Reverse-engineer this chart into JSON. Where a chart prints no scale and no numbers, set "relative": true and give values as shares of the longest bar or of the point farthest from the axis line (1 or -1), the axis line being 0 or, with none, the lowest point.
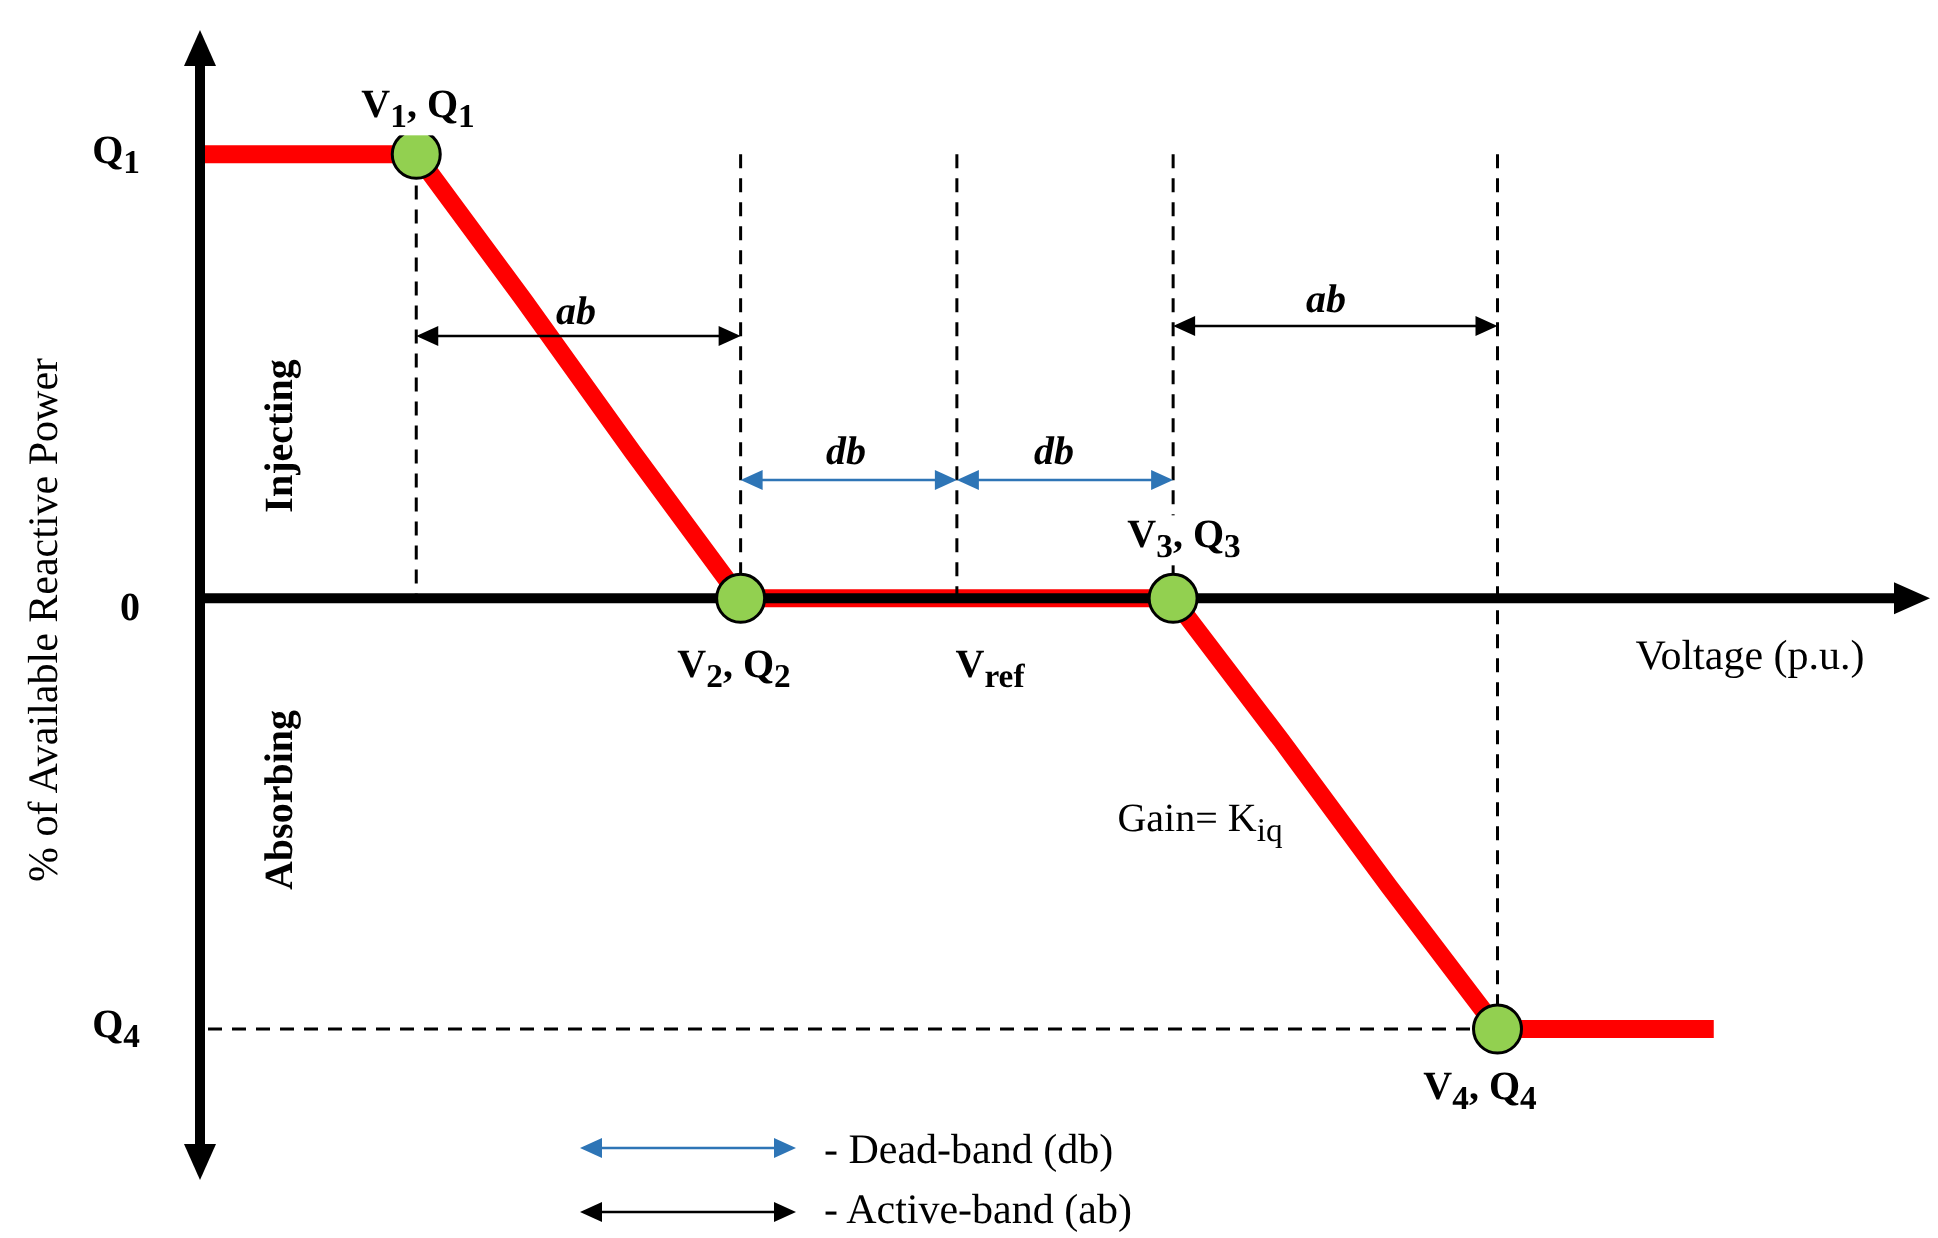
{
  "chart_data": {
    "type": "line",
    "relative": true,
    "xlabel": "Voltage (p.u.)",
    "ylabel": "% of Available Reactive Power",
    "categories": [
      null,
      null,
      null,
      null,
      null,
      null,
      null,
      null,
      null,
      null,
      null,
      null,
      null,
      null,
      null
    ],
    "series": [
      {
        "color": "#ff0000",
        "line_style": "solid",
        "values": [
          1,
          1,
          1,
          0.67,
          0.33,
          0,
          0,
          0,
          0,
          0,
          -0.32,
          -0.65,
          -0.97,
          -0.97,
          -0.97
        ]
      }
    ],
    "annotations": [
      "Q$_{1}$",
      "0",
      "Q$_{4}$",
      "V$_{1}$, Q$_{1}$",
      "V$_{2}$, Q$_{2}$",
      "V$_{ref}$",
      "V$_{3}$, Q$_{3}$",
      "V$_{4}$, Q$_{4}$",
      "ab",
      "db",
      "db",
      "ab",
      "Injecting",
      "Absorbing",
      "Gain= K$_{iq}$",
      "- Dead-band (db)",
      "- Active-band (ab)"
    ]
  }
}
